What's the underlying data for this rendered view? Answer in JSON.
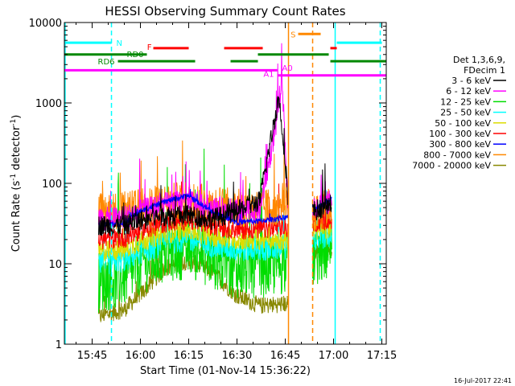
{
  "chart_data": {
    "type": "line",
    "title": "HESSI Observing Summary Count Rates",
    "xlabel": "Start Time (01-Nov-14 15:36:22)",
    "ylabel_main": "Count Rate (s",
    "ylabel_sup1": "-1",
    "ylabel_mid": " detector",
    "ylabel_sup2": "-1",
    "ylabel_end": ")",
    "y_scale": "log",
    "ylim": [
      1,
      10000
    ],
    "xlim_minutes": [
      36.37,
      136.37
    ],
    "x_ticks": [
      {
        "label": "15:45",
        "minute": 45
      },
      {
        "label": "16:00",
        "minute": 60
      },
      {
        "label": "16:15",
        "minute": 75
      },
      {
        "label": "16:30",
        "minute": 90
      },
      {
        "label": "16:45",
        "minute": 105
      },
      {
        "label": "17:00",
        "minute": 120
      },
      {
        "label": "17:15",
        "minute": 135
      }
    ],
    "y_ticks": [
      {
        "label": "1",
        "value": 1
      },
      {
        "label": "10",
        "value": 10
      },
      {
        "label": "100",
        "value": 100
      },
      {
        "label": "1000",
        "value": 1000
      },
      {
        "label": "10000",
        "value": 10000
      }
    ],
    "legend": {
      "placement": "right",
      "header1": "Det 1,3,6,9,",
      "header2": "FDecim 1",
      "entries": [
        {
          "label": "3 - 6 keV",
          "color": "#000000"
        },
        {
          "label": "6 - 12 keV",
          "color": "#ff00ff"
        },
        {
          "label": "12 - 25 keV",
          "color": "#00dd00"
        },
        {
          "label": "25 - 50 keV",
          "color": "#00ffff"
        },
        {
          "label": "50 - 100 keV",
          "color": "#dddd00"
        },
        {
          "label": "100 - 300 keV",
          "color": "#ff0000"
        },
        {
          "label": "300 - 800 keV",
          "color": "#0000ff"
        },
        {
          "label": "800 - 7000 keV",
          "color": "#ff8800"
        },
        {
          "label": "7000 - 20000 keV",
          "color": "#888800"
        }
      ]
    },
    "flag_bars": [
      {
        "label": "N",
        "color": "#00ffff",
        "value": 5600,
        "segments": [
          [
            36.4,
            51
          ],
          [
            121,
            135
          ]
        ]
      },
      {
        "label": "F",
        "color": "#ff0000",
        "value": 4800,
        "segments": [
          [
            64,
            75
          ],
          [
            86,
            98
          ],
          [
            119,
            121
          ]
        ]
      },
      {
        "label": "S",
        "color": "#ff8800",
        "value": 7200,
        "segments": [
          [
            109,
            116
          ]
        ]
      },
      {
        "label": "RD0",
        "color": "#008800",
        "value": 4000,
        "segments": [
          [
            36.4,
            62
          ],
          [
            96.5,
            118.5
          ]
        ]
      },
      {
        "label": "RD6",
        "color": "#008800",
        "value": 3300,
        "segments": [
          [
            53,
            77
          ],
          [
            88,
            96.5
          ],
          [
            119,
            136.4
          ]
        ]
      },
      {
        "label": "A1",
        "color": "#ff00ff",
        "value": 2550,
        "segments": [
          [
            36.4,
            102.5
          ]
        ]
      },
      {
        "label": "A0",
        "color": "#ff00ff",
        "value": 2200,
        "segments": [
          [
            102.5,
            136.4
          ]
        ]
      }
    ],
    "vertical_markers": [
      {
        "minute": 36.6,
        "color": "#00ffff",
        "style": "solid"
      },
      {
        "minute": 51,
        "color": "#00ffff",
        "style": "dashed"
      },
      {
        "minute": 106,
        "color": "#ff8800",
        "style": "solid"
      },
      {
        "minute": 113.5,
        "color": "#ff8800",
        "style": "dashed"
      },
      {
        "minute": 120.5,
        "color": "#00ffff",
        "style": "solid"
      },
      {
        "minute": 134.5,
        "color": "#00ffff",
        "style": "dashed"
      }
    ],
    "data_windows": [
      [
        47,
        106
      ],
      [
        113.5,
        119.5
      ]
    ],
    "series": [
      {
        "color": "#888800",
        "base": [
          [
            47,
            2.2
          ],
          [
            55,
            2.7
          ],
          [
            60,
            4.2
          ],
          [
            68,
            9
          ],
          [
            75,
            11
          ],
          [
            82,
            8
          ],
          [
            90,
            4
          ],
          [
            97,
            3
          ],
          [
            106,
            3.2
          ],
          [
            113.5,
            14
          ],
          [
            119.5,
            16
          ]
        ],
        "noise": 0.25
      },
      {
        "color": "#00dd00",
        "base": [
          [
            47,
            6
          ],
          [
            55,
            7
          ],
          [
            60,
            10
          ],
          [
            68,
            14
          ],
          [
            75,
            16
          ],
          [
            82,
            12
          ],
          [
            90,
            9
          ],
          [
            97,
            9
          ],
          [
            106,
            10
          ],
          [
            113.5,
            12
          ],
          [
            119.5,
            15
          ]
        ],
        "noise": 0.9
      },
      {
        "color": "#00ffff",
        "base": [
          [
            47,
            10
          ],
          [
            55,
            11
          ],
          [
            60,
            14
          ],
          [
            68,
            18
          ],
          [
            75,
            20
          ],
          [
            82,
            17
          ],
          [
            90,
            15
          ],
          [
            97,
            15
          ],
          [
            106,
            16
          ],
          [
            113.5,
            20
          ],
          [
            119.5,
            22
          ]
        ],
        "noise": 0.35
      },
      {
        "color": "#dddd00",
        "base": [
          [
            47,
            14
          ],
          [
            55,
            15
          ],
          [
            60,
            19
          ],
          [
            68,
            24
          ],
          [
            75,
            26
          ],
          [
            82,
            22
          ],
          [
            90,
            20
          ],
          [
            97,
            20
          ],
          [
            106,
            20
          ],
          [
            113.5,
            26
          ],
          [
            119.5,
            28
          ]
        ],
        "noise": 0.3
      },
      {
        "color": "#ff0000",
        "base": [
          [
            47,
            20
          ],
          [
            55,
            21
          ],
          [
            60,
            26
          ],
          [
            68,
            33
          ],
          [
            75,
            36
          ],
          [
            82,
            30
          ],
          [
            90,
            27
          ],
          [
            97,
            27
          ],
          [
            106,
            28
          ],
          [
            113.5,
            33
          ],
          [
            119.5,
            36
          ]
        ],
        "noise": 0.3
      },
      {
        "color": "#ff8800",
        "base": [
          [
            47,
            45
          ],
          [
            55,
            46
          ],
          [
            60,
            50
          ],
          [
            68,
            58
          ],
          [
            75,
            62
          ],
          [
            82,
            55
          ],
          [
            90,
            50
          ],
          [
            97,
            50
          ],
          [
            106,
            52
          ],
          [
            113.5,
            40
          ],
          [
            119.5,
            55
          ]
        ],
        "noise": 0.55
      },
      {
        "color": "#ff00ff",
        "base": [
          [
            47,
            35
          ],
          [
            55,
            38
          ],
          [
            60,
            45
          ],
          [
            68,
            55
          ],
          [
            75,
            60
          ],
          [
            82,
            50
          ],
          [
            90,
            45
          ],
          [
            97,
            45
          ],
          [
            102,
            500
          ],
          [
            104,
            2000
          ],
          [
            106,
            40
          ],
          [
            113.5,
            50
          ],
          [
            119.5,
            60
          ]
        ],
        "noise": 0.35
      },
      {
        "color": "#0000ff",
        "base": [
          [
            47,
            30
          ],
          [
            55,
            32
          ],
          [
            60,
            45
          ],
          [
            68,
            60
          ],
          [
            75,
            70
          ],
          [
            82,
            45
          ],
          [
            90,
            33
          ],
          [
            97,
            34
          ],
          [
            106,
            38
          ],
          [
            113.5,
            45
          ],
          [
            119.5,
            65
          ]
        ],
        "noise": 0.08
      },
      {
        "color": "#000000",
        "base": [
          [
            47,
            30
          ],
          [
            55,
            30
          ],
          [
            60,
            35
          ],
          [
            68,
            40
          ],
          [
            75,
            40
          ],
          [
            82,
            36
          ],
          [
            90,
            45
          ],
          [
            97,
            60
          ],
          [
            103,
            1200
          ],
          [
            105,
            200
          ],
          [
            106,
            50
          ],
          [
            113.5,
            45
          ],
          [
            119.5,
            55
          ]
        ],
        "noise": 0.3
      }
    ]
  },
  "footer": {
    "timestamp": "16-Jul-2017 22:41"
  }
}
